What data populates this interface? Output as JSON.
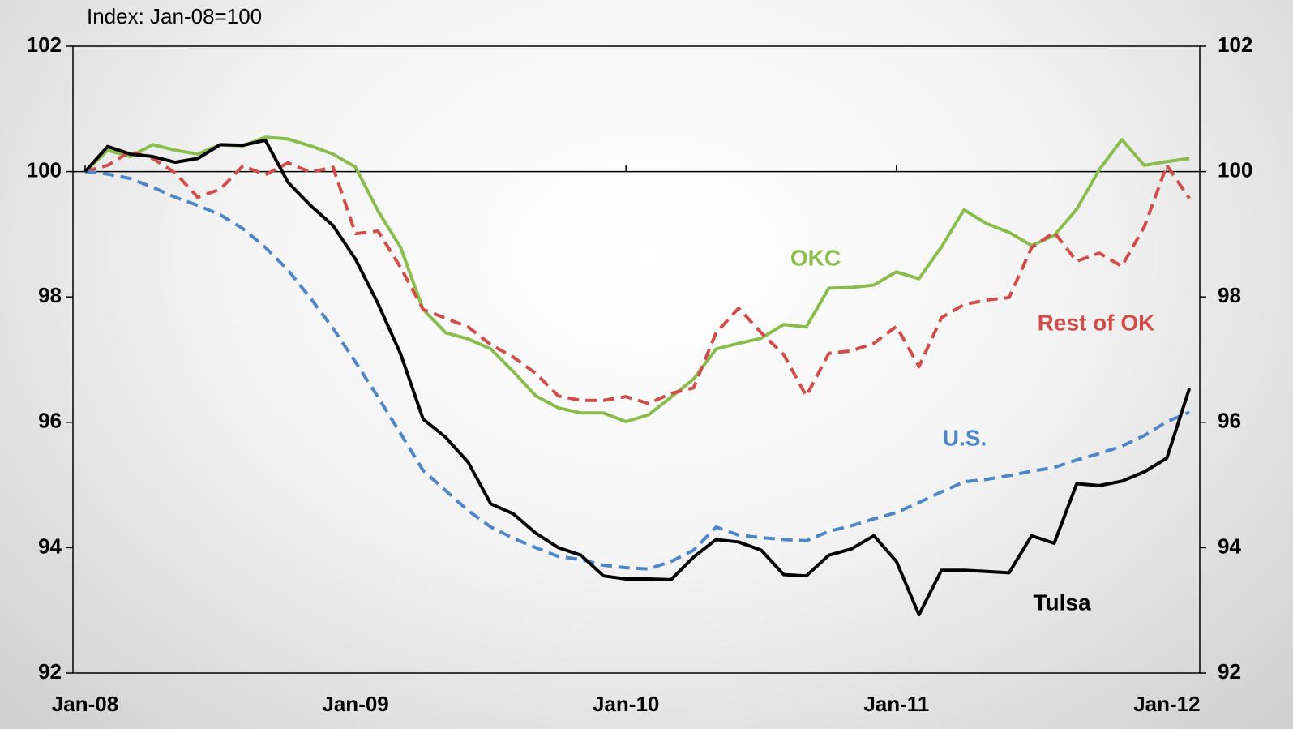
{
  "chart_data": {
    "type": "line",
    "subtitle": "Index: Jan-08=100",
    "categories": [
      "Jan-08",
      null,
      null,
      null,
      null,
      null,
      null,
      null,
      null,
      null,
      null,
      null,
      "Jan-09",
      null,
      null,
      null,
      null,
      null,
      null,
      null,
      null,
      null,
      null,
      null,
      "Jan-10",
      null,
      null,
      null,
      null,
      null,
      null,
      null,
      null,
      null,
      null,
      null,
      "Jan-11",
      null,
      null,
      null,
      null,
      null,
      null,
      null,
      null,
      null,
      null,
      null,
      "Jan-12",
      null
    ],
    "ylim": [
      92,
      102
    ],
    "yticks": [
      92,
      94,
      96,
      98,
      100,
      102
    ],
    "y2lim": [
      92,
      102
    ],
    "y2ticks": [
      92,
      94,
      96,
      98,
      100,
      102
    ],
    "reference_line": 100,
    "series": [
      {
        "name": "OKC",
        "color": "#8cbb4e",
        "dashed": false,
        "values": [
          100,
          100.34,
          100.24,
          100.43,
          100.34,
          100.28,
          100.43,
          100.41,
          100.55,
          100.52,
          100.41,
          100.28,
          100.07,
          99.37,
          98.79,
          97.8,
          97.43,
          97.33,
          97.17,
          96.81,
          96.42,
          96.23,
          96.15,
          96.15,
          96.01,
          96.12,
          96.4,
          96.69,
          97.17,
          97.26,
          97.34,
          97.56,
          97.52,
          98.14,
          98.15,
          98.19,
          98.4,
          98.29,
          98.8,
          99.39,
          99.17,
          99.03,
          98.82,
          98.98,
          99.4,
          100.03,
          100.51,
          100.1,
          100.16,
          100.21
        ]
      },
      {
        "name": "Rest of OK",
        "color": "#cf4e4b",
        "dashed": true,
        "values": [
          100,
          100.1,
          100.32,
          100.21,
          99.98,
          99.59,
          99.72,
          100.09,
          99.95,
          100.14,
          99.99,
          100.07,
          99.01,
          99.05,
          98.47,
          97.8,
          97.66,
          97.52,
          97.24,
          97.04,
          96.78,
          96.42,
          96.35,
          96.35,
          96.41,
          96.3,
          96.46,
          96.55,
          97.43,
          97.82,
          97.43,
          97.08,
          96.42,
          97.1,
          97.14,
          97.26,
          97.53,
          96.89,
          97.67,
          97.88,
          97.95,
          97.99,
          98.79,
          99.03,
          98.57,
          98.7,
          98.49,
          99.12,
          100.1,
          99.57
        ]
      },
      {
        "name": "U.S.",
        "color": "#4f86c6",
        "dashed": true,
        "values": [
          100,
          99.96,
          99.89,
          99.75,
          99.59,
          99.46,
          99.31,
          99.09,
          98.79,
          98.43,
          97.98,
          97.5,
          96.96,
          96.4,
          95.82,
          95.23,
          94.91,
          94.59,
          94.33,
          94.15,
          94.0,
          93.86,
          93.81,
          93.72,
          93.68,
          93.66,
          93.78,
          93.96,
          94.33,
          94.2,
          94.16,
          94.13,
          94.11,
          94.26,
          94.35,
          94.46,
          94.56,
          94.72,
          94.89,
          95.05,
          95.09,
          95.15,
          95.22,
          95.28,
          95.4,
          95.5,
          95.62,
          95.79,
          96.01,
          96.16
        ]
      },
      {
        "name": "Tulsa",
        "color": "#000000",
        "dashed": false,
        "values": [
          100,
          100.4,
          100.28,
          100.24,
          100.15,
          100.21,
          100.43,
          100.42,
          100.5,
          99.83,
          99.46,
          99.14,
          98.6,
          97.89,
          97.09,
          96.05,
          95.76,
          95.36,
          94.7,
          94.54,
          94.23,
          94.0,
          93.88,
          93.55,
          93.5,
          93.5,
          93.49,
          93.85,
          94.13,
          94.09,
          93.96,
          93.57,
          93.55,
          93.88,
          93.98,
          94.19,
          93.78,
          92.93,
          93.64,
          93.64,
          93.62,
          93.6,
          94.19,
          94.07,
          95.02,
          94.99,
          95.06,
          95.21,
          95.43,
          96.54
        ]
      }
    ]
  }
}
